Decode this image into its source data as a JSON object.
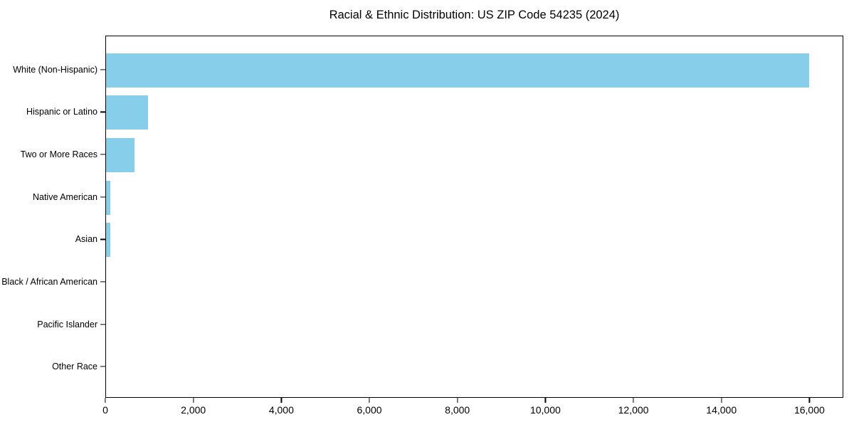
{
  "chart_data": {
    "type": "bar",
    "orientation": "horizontal",
    "title": "Racial & Ethnic Distribution: US ZIP Code 54235 (2024)",
    "categories": [
      "White (Non-Hispanic)",
      "Hispanic or Latino",
      "Two or More Races",
      "Native American",
      "Asian",
      "Black / African American",
      "Pacific Islander",
      "Other Race"
    ],
    "values": [
      15980,
      950,
      650,
      90,
      100,
      0,
      0,
      0
    ],
    "bar_color": "#87CEEB",
    "text_color": "#000000",
    "xlabel": "",
    "ylabel": "",
    "xlim": [
      0,
      16770
    ],
    "xticks": [
      0,
      2000,
      4000,
      6000,
      8000,
      10000,
      12000,
      14000,
      16000
    ],
    "xtick_labels": [
      "0",
      "2,000",
      "4,000",
      "6,000",
      "8,000",
      "10,000",
      "12,000",
      "14,000",
      "16,000"
    ],
    "grid": false,
    "legend": "none",
    "background": "#ffffff"
  }
}
